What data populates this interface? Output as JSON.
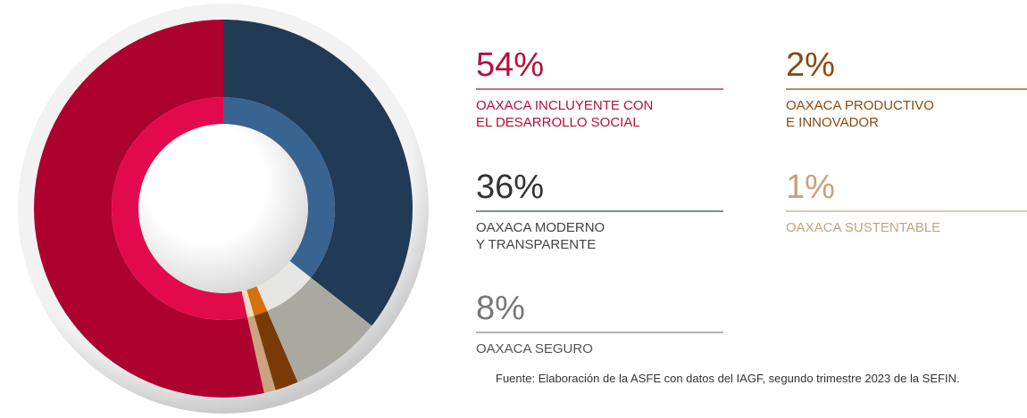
{
  "chart_data": {
    "type": "donut",
    "categories": [
      [
        "OAXACA INCLUYENTE CON",
        "EL DESARROLLO SOCIAL"
      ],
      [
        "OAXACA MODERNO",
        "Y TRANSPARENTE"
      ],
      [
        "OAXACA SEGURO"
      ],
      [
        "OAXACA PRODUCTIVO",
        "E INNOVADOR"
      ],
      [
        "OAXACA SUSTENTABLE"
      ]
    ],
    "values": [
      54,
      36,
      8,
      2,
      1
    ],
    "value_labels": [
      "54%",
      "36%",
      "8%",
      "2%",
      "1%"
    ],
    "colors": [
      "#ad0230",
      "#213a56",
      "#a9a9a1",
      "#7a3a08",
      "#c9a47e"
    ],
    "inner_colors": [
      "#e20a4c",
      "#396391",
      "#e6e6e2",
      "#d4700f",
      "#f0d9c1"
    ],
    "label_colors": [
      "#b5103c",
      "#333333",
      "#777777",
      "#8a4a10",
      "#c9a27a"
    ],
    "name_colors": [
      "#b5103c",
      "#444444",
      "#555555",
      "#8a4a10",
      "#c9a27a"
    ],
    "line_colors": [
      "#b5103c",
      "#2d4a6a",
      "#888888",
      "#8a4a10",
      "#c9a27a"
    ],
    "source": "Fuente: Elaboración de la ASFE con datos del IAGF, segundo trimestre 2023 de la SEFIN."
  }
}
